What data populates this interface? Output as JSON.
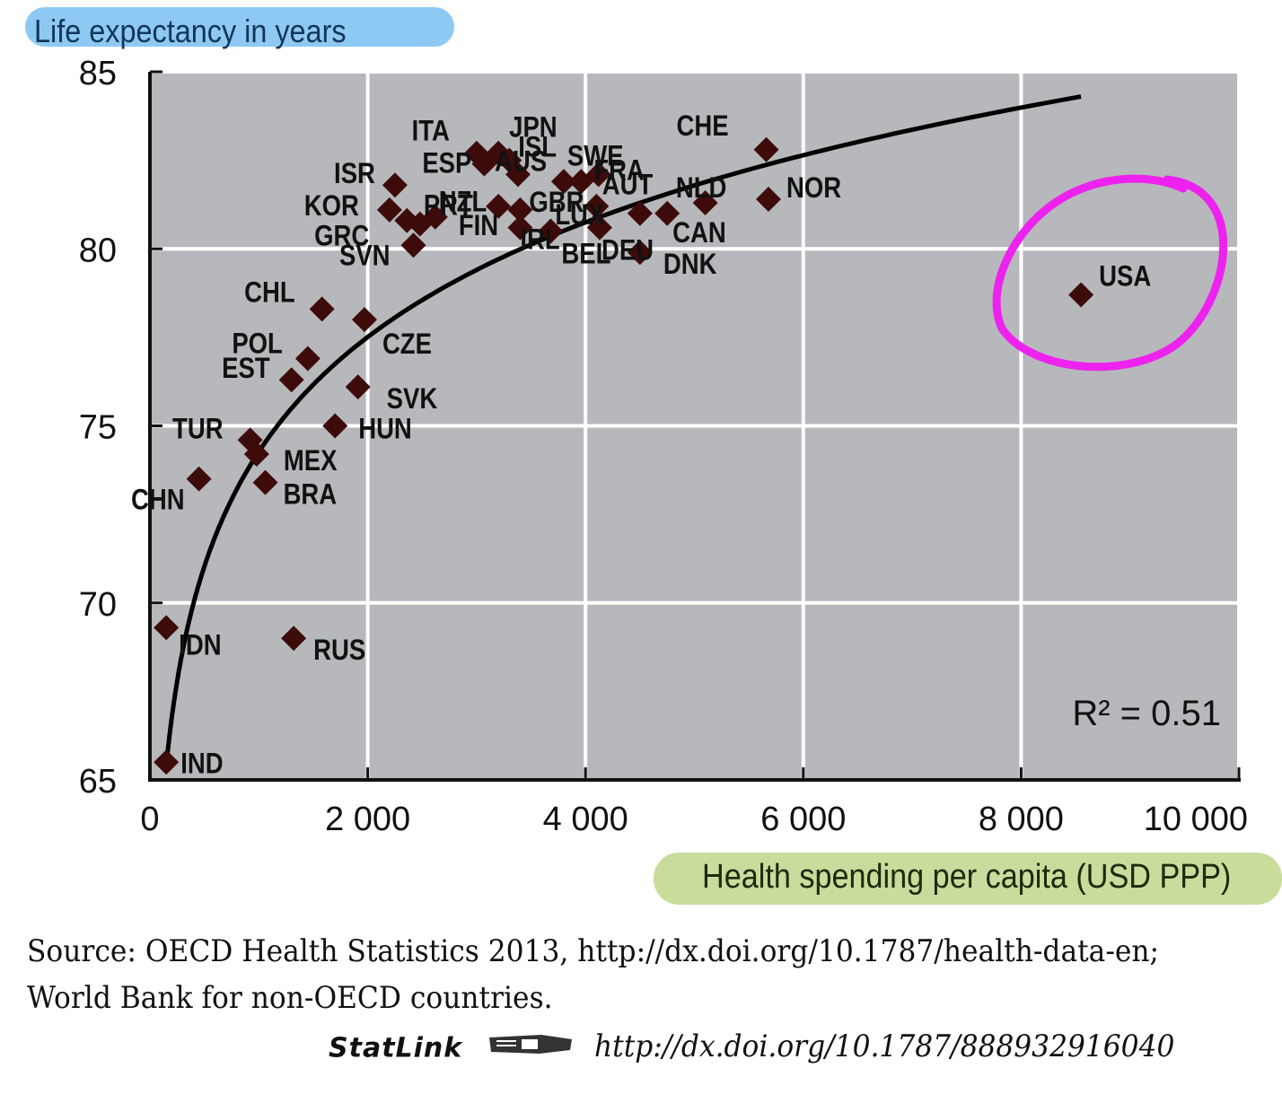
{
  "chart_data": {
    "type": "scatter",
    "ylabel": "Life expectancy in years",
    "xlabel": "Health spending per capita (USD PPP)",
    "xlim": [
      0,
      10000
    ],
    "ylim": [
      65,
      85
    ],
    "x_ticks": [
      0,
      2000,
      4000,
      6000,
      8000,
      10000
    ],
    "x_tick_labels": [
      "0",
      "2 000",
      "4 000",
      "6 000",
      "8 000",
      "10 000"
    ],
    "y_ticks": [
      65,
      70,
      75,
      80,
      85
    ],
    "y_tick_labels": [
      "65",
      "70",
      "75",
      "80",
      "85"
    ],
    "grid": true,
    "annotation": "R² = 0.51",
    "trendline": {
      "type": "logarithmic",
      "x_range": [
        150,
        8550
      ]
    },
    "highlight": {
      "label": "USA",
      "shape": "hand-drawn circle",
      "color": "#ee22ee"
    },
    "colors": {
      "plot_bg": "#b7b8bc",
      "grid": "#ffffff",
      "marker": "#3d0c0a",
      "trend": "#000000"
    },
    "points": [
      {
        "label": "IND",
        "x": 150,
        "y": 65.5
      },
      {
        "label": "IDN",
        "x": 150,
        "y": 69.3
      },
      {
        "label": "CHN",
        "x": 450,
        "y": 73.5
      },
      {
        "label": "TUR",
        "x": 920,
        "y": 74.6
      },
      {
        "label": "MEX",
        "x": 980,
        "y": 74.2
      },
      {
        "label": "BRA",
        "x": 1060,
        "y": 73.4
      },
      {
        "label": "RUS",
        "x": 1320,
        "y": 69.0
      },
      {
        "label": "EST",
        "x": 1300,
        "y": 76.3
      },
      {
        "label": "POL",
        "x": 1450,
        "y": 76.9
      },
      {
        "label": "CHL",
        "x": 1580,
        "y": 78.3
      },
      {
        "label": "HUN",
        "x": 1700,
        "y": 75.0
      },
      {
        "label": "SVK",
        "x": 1910,
        "y": 76.1
      },
      {
        "label": "CZE",
        "x": 1970,
        "y": 78.0
      },
      {
        "label": "KOR",
        "x": 2200,
        "y": 81.1
      },
      {
        "label": "ISR",
        "x": 2250,
        "y": 81.8
      },
      {
        "label": "GRC",
        "x": 2360,
        "y": 80.8
      },
      {
        "label": "SVN",
        "x": 2420,
        "y": 80.1
      },
      {
        "label": "PRT",
        "x": 2480,
        "y": 80.7
      },
      {
        "label": "NZL",
        "x": 2620,
        "y": 80.9
      },
      {
        "label": "ITA",
        "x": 3000,
        "y": 82.7
      },
      {
        "label": "ESP",
        "x": 3070,
        "y": 82.4
      },
      {
        "label": "JPN",
        "x": 3200,
        "y": 82.7
      },
      {
        "label": "ISL",
        "x": 3300,
        "y": 82.5
      },
      {
        "label": "FIN",
        "x": 3200,
        "y": 81.2
      },
      {
        "label": "AUS",
        "x": 3380,
        "y": 82.1
      },
      {
        "label": "GBR",
        "x": 3400,
        "y": 81.1
      },
      {
        "label": "IRL",
        "x": 3400,
        "y": 80.6
      },
      {
        "label": "SWE",
        "x": 3800,
        "y": 81.9
      },
      {
        "label": "BEL",
        "x": 3680,
        "y": 80.5
      },
      {
        "label": "FRA",
        "x": 3960,
        "y": 81.9
      },
      {
        "label": "AUT",
        "x": 4120,
        "y": 82.1
      },
      {
        "label": "LUX",
        "x": 4100,
        "y": 81.2
      },
      {
        "label": "DEU",
        "x": 4130,
        "y": 80.6
      },
      {
        "label": "NLD",
        "x": 4500,
        "y": 81.0
      },
      {
        "label": "DNK",
        "x": 4500,
        "y": 79.9
      },
      {
        "label": "CAN",
        "x": 4750,
        "y": 81.0
      },
      {
        "label": "NOR",
        "x": 5100,
        "y": 81.3
      },
      {
        "label": "CHE",
        "x": 5660,
        "y": 82.8
      },
      {
        "label": "NOR",
        "x": 5680,
        "y": 81.4
      },
      {
        "label": "USA",
        "x": 8550,
        "y": 78.7
      }
    ]
  },
  "source": {
    "line1": "Source:  OECD Health Statistics 2013, http://dx.doi.org/10.1787/health-data-en;",
    "line2": "World Bank for non-OECD countries.",
    "statlink_label": "StatLink",
    "statlink_url": "http://dx.doi.org/10.1787/888932916040"
  }
}
